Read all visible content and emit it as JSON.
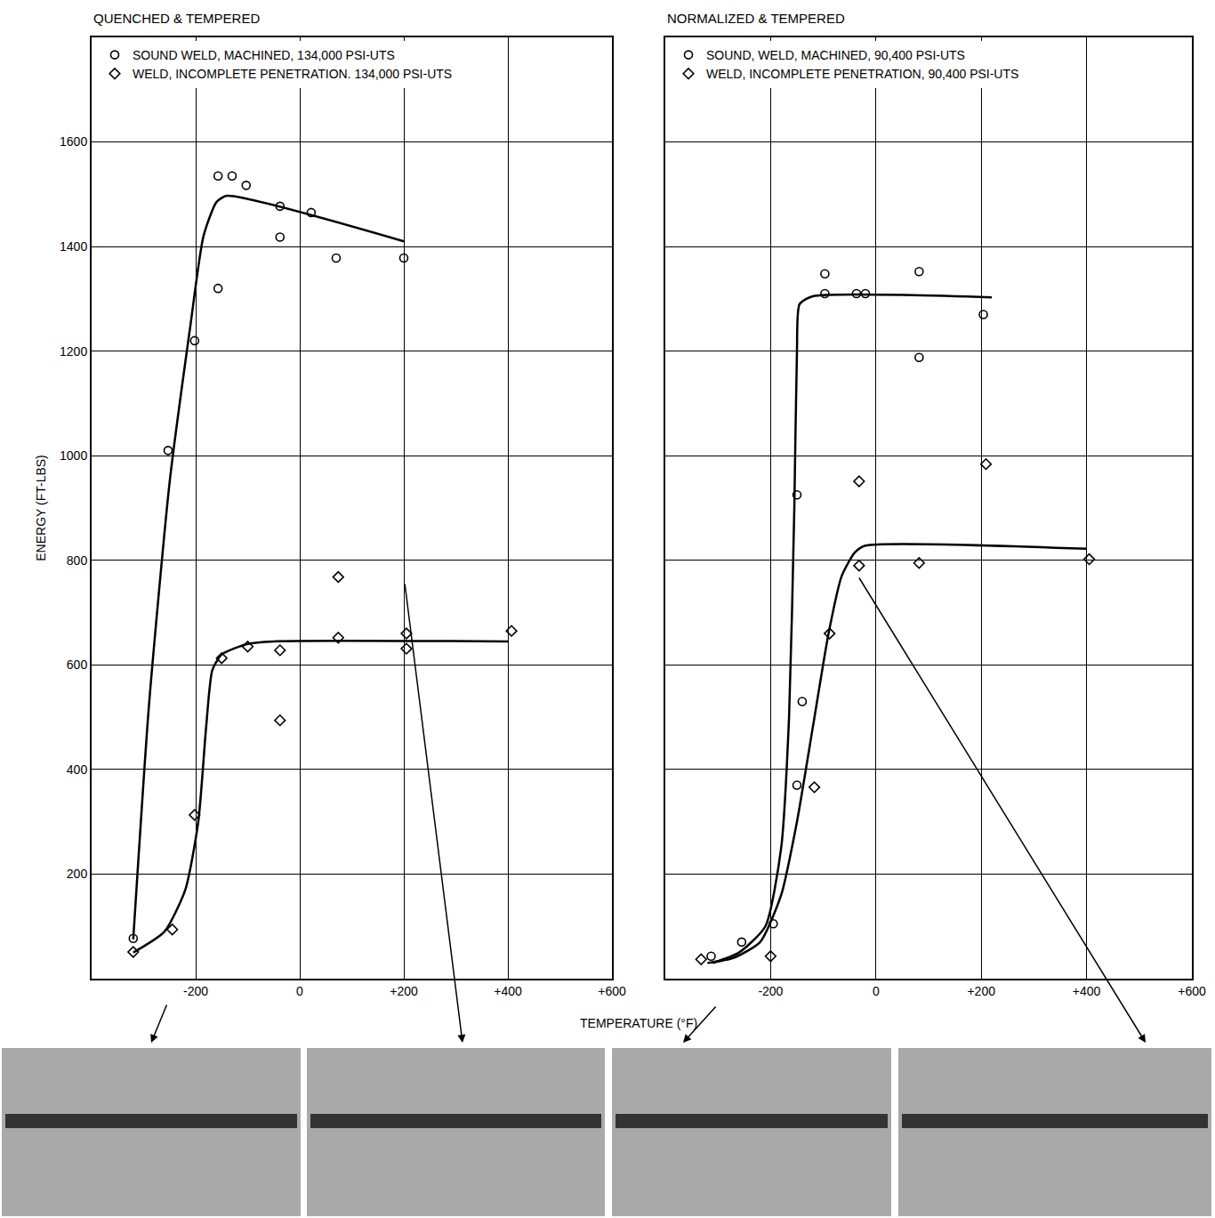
{
  "xlabel": "TEMPERATURE (°F)",
  "chart_data": [
    {
      "type": "scatter",
      "title": "QUENCHED & TEMPERED",
      "ylabel": "ENERGY (FT-LBS)",
      "xlim": [
        -400,
        600
      ],
      "xticks": [
        -200,
        0,
        {
          "value": 200,
          "label": "+200"
        },
        {
          "value": 400,
          "label": "+400"
        },
        {
          "value": 600,
          "label": "+600"
        }
      ],
      "ylim": [
        0,
        1800
      ],
      "yticks": [
        200,
        400,
        600,
        800,
        1000,
        1200,
        1400,
        1600
      ],
      "grid": true,
      "legend": "upper left",
      "series": [
        {
          "name": "SOUND WELD, MACHINED, 134,000 PSI-UTS",
          "marker": "circle",
          "color": "#000000",
          "x": [
            -320,
            -253,
            -202,
            -157,
            -157,
            -130,
            -103,
            -38,
            -38,
            22,
            70,
            200
          ],
          "values": [
            77,
            1010,
            1220,
            1535,
            1320,
            1535,
            1517,
            1477,
            1418,
            1465,
            1378,
            1378
          ]
        },
        {
          "name": "WELD, INCOMPLETE PENETRATION. 134,000 PSI-UTS",
          "marker": "diamond",
          "color": "#000000",
          "x": [
            -320,
            -245,
            -202,
            -150,
            -100,
            -38,
            -38,
            74,
            74,
            205,
            205,
            407
          ],
          "values": [
            51,
            94,
            313,
            613,
            635,
            628,
            494,
            768,
            652,
            660,
            631,
            665
          ]
        },
        {
          "type": "line",
          "line_style": "solid",
          "color": "#000000",
          "x": [
            -320,
            -290,
            -250,
            -210,
            -185,
            -160,
            -140,
            200
          ],
          "values": [
            75,
            520,
            950,
            1250,
            1420,
            1485,
            1497,
            1410
          ]
        },
        {
          "type": "line",
          "line_style": "solid",
          "color": "#000000",
          "x": [
            -320,
            -260,
            -220,
            -195,
            -180,
            -168,
            -150,
            -100,
            -50,
            400
          ],
          "values": [
            50,
            90,
            170,
            300,
            480,
            590,
            620,
            640,
            645,
            645
          ]
        }
      ]
    },
    {
      "type": "scatter",
      "title": "NORMALIZED & TEMPERED",
      "xlim": [
        -400,
        600
      ],
      "xticks": [
        -200,
        0,
        {
          "value": 200,
          "label": "+200"
        },
        {
          "value": 400,
          "label": "+400"
        },
        {
          "value": 600,
          "label": "+600"
        }
      ],
      "ylim": [
        0,
        1800
      ],
      "yticks": [
        200,
        400,
        600,
        800,
        1000,
        1200,
        1400,
        1600
      ],
      "grid": true,
      "legend": "upper left",
      "tick_labels": "x",
      "series": [
        {
          "name": "SOUND, WELD, MACHINED, 90,400 PSI-UTS",
          "marker": "circle",
          "color": "#000000",
          "x": [
            -313,
            -255,
            -195,
            -150,
            -150,
            -140,
            -97,
            -97,
            -37,
            -20,
            82,
            82,
            204
          ],
          "values": [
            43,
            70,
            105,
            370,
            925,
            530,
            1348,
            1310,
            1310,
            1310,
            1352,
            1188,
            1270
          ]
        },
        {
          "name": "WELD, INCOMPLETE PENETRATION, 90,400 PSI-UTS",
          "marker": "diamond",
          "color": "#000000",
          "x": [
            -332,
            -200,
            -117,
            -88,
            -32,
            -32,
            82,
            209,
            405
          ],
          "values": [
            37,
            43,
            366,
            660,
            951,
            790,
            795,
            984,
            802
          ]
        },
        {
          "type": "line",
          "line_style": "solid",
          "color": "#000000",
          "x": [
            -310,
            -260,
            -210,
            -180,
            -165,
            -155,
            -150,
            -145,
            -120,
            220
          ],
          "values": [
            30,
            50,
            100,
            250,
            500,
            900,
            1200,
            1290,
            1305,
            1303
          ]
        },
        {
          "type": "line",
          "line_style": "solid",
          "color": "#000000",
          "x": [
            -320,
            -270,
            -220,
            -180,
            -150,
            -120,
            -90,
            -65,
            -40,
            -20,
            400
          ],
          "values": [
            30,
            40,
            70,
            160,
            300,
            480,
            660,
            770,
            815,
            828,
            822
          ]
        }
      ]
    }
  ]
}
